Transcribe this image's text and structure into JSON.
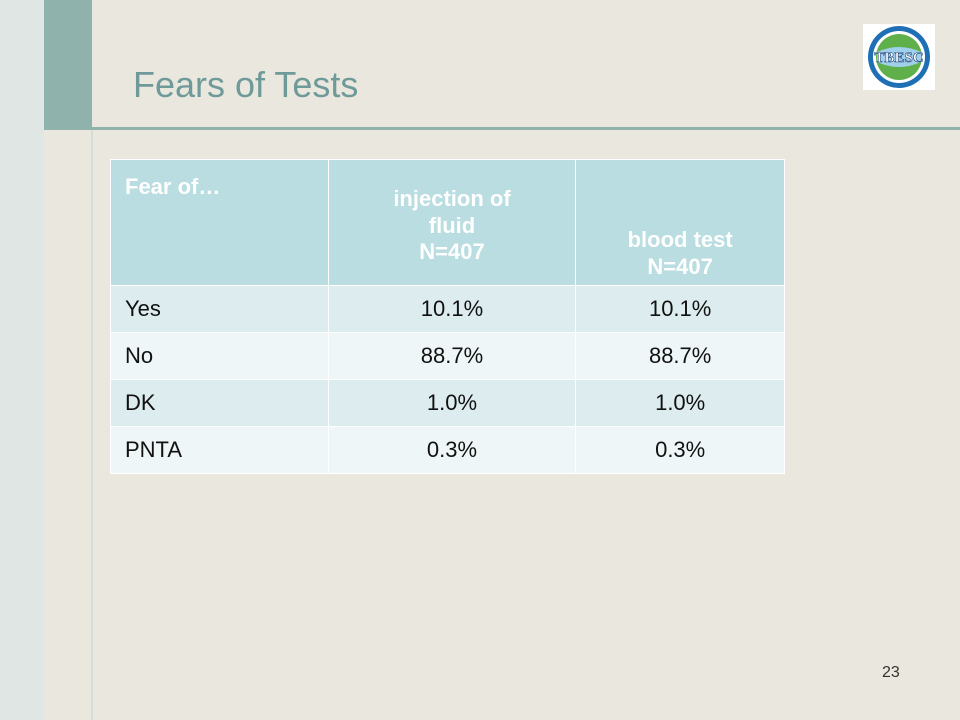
{
  "slide": {
    "title": "Fears of Tests",
    "page_number": "23",
    "logo_text": "TBESC"
  },
  "table": {
    "headers": [
      {
        "lines": [
          "Fear of…"
        ]
      },
      {
        "lines": [
          "injection of",
          "fluid",
          "N=407"
        ]
      },
      {
        "lines": [
          "blood test",
          "N=407"
        ]
      }
    ],
    "rows": [
      [
        "Yes",
        "10.1%",
        "10.1%"
      ],
      [
        "No",
        "88.7%",
        "88.7%"
      ],
      [
        "DK",
        "1.0%",
        "1.0%"
      ],
      [
        "PNTA",
        "0.3%",
        "0.3%"
      ]
    ]
  },
  "colors": {
    "background": "#e9e7de",
    "accent": "#8fb2ad",
    "title": "#6f9a9a",
    "header_fill": "#b9dde0",
    "row_fill_a": "#dcecef",
    "row_fill_b": "#eef6f7"
  }
}
